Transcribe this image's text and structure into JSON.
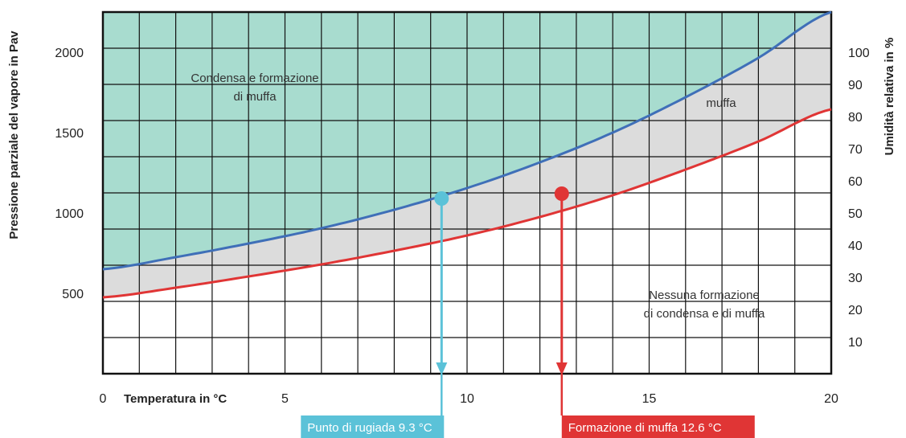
{
  "chart_data": {
    "type": "line",
    "xlabel": "Temperatura in °C",
    "ylabel_left": "Pressione parziale del vapore in Pav",
    "ylabel_right": "Umidità relativa in %",
    "xlim": [
      0,
      20
    ],
    "ylim_left": [
      0,
      2250
    ],
    "ylim_right": [
      0,
      112.5
    ],
    "x_ticks": [
      0,
      5,
      10,
      15,
      20
    ],
    "y_ticks_left": [
      500,
      1000,
      1500,
      2000
    ],
    "y_ticks_right": [
      10,
      20,
      30,
      40,
      50,
      60,
      70,
      80,
      90,
      100
    ],
    "grid": true,
    "series": [
      {
        "name": "",
        "color": "#3f6fb8",
        "x": [
          0,
          2,
          4,
          6,
          8,
          10,
          12,
          14,
          16,
          18,
          20
        ],
        "y": [
          650,
          725,
          810,
          905,
          1020,
          1155,
          1315,
          1500,
          1720,
          1965,
          2250
        ]
      },
      {
        "name": "",
        "color": "#e03535",
        "x": [
          0,
          2,
          4,
          6,
          8,
          10,
          12,
          14,
          16,
          18,
          20
        ],
        "y": [
          475,
          535,
          605,
          680,
          765,
          860,
          975,
          1110,
          1270,
          1445,
          1645
        ]
      }
    ],
    "points": [
      {
        "x": 9.3,
        "y": 1090,
        "color": "#5bc2d8"
      },
      {
        "x": 12.6,
        "y": 1120,
        "color": "#e03535"
      }
    ],
    "regions": {
      "top_line1": "Condensa e formazione",
      "top_line2": "di muffa",
      "middle": "muffa",
      "bottom_line1": "Nessuna formazione",
      "bottom_line2": "di condensa e di muffa"
    },
    "callouts": [
      {
        "label": "Punto di rugiada 9.3 °C",
        "x": 9.3,
        "color": "#5bc2d8"
      },
      {
        "label": "Formazione di muffa 12.6 °C",
        "x": 12.6,
        "color": "#e03535"
      }
    ],
    "colors": {
      "condensation_fill": "#a8dccf",
      "mould_fill": "#dcdcdc",
      "grid": "#111111"
    }
  }
}
